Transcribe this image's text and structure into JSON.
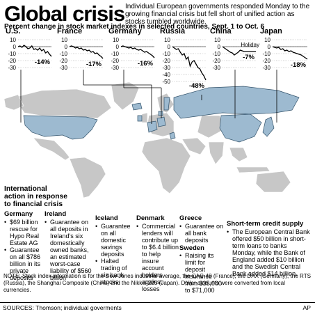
{
  "title": "Global crisis",
  "subtitle": "Individual European governments responded Monday to the growing financial crisis but fell short of unified action as stocks tumbled worldwide.",
  "chart_heading": "Percent change in stock market indexes in selected countries, Sept. 1 to Oct. 6",
  "colors": {
    "accent": "#9dbad0",
    "ocean": "#ffffff",
    "land": "#bfbfbf",
    "line": "#000000"
  },
  "chart_data": [
    {
      "type": "line",
      "title": "U.S.",
      "ylim": [
        -30,
        10
      ],
      "yticks": [
        "10",
        "0",
        "-10",
        "-20",
        "-30"
      ],
      "values": [
        0,
        1,
        -1,
        2,
        0,
        -3,
        -2,
        1,
        -4,
        -3,
        -5,
        -2,
        -6,
        -4,
        -9,
        -7,
        -11,
        -14
      ],
      "label": "-14%"
    },
    {
      "type": "line",
      "title": "France",
      "ylim": [
        -30,
        10
      ],
      "yticks": [
        "10",
        "0",
        "-10",
        "-20",
        "-30"
      ],
      "values": [
        0,
        1,
        0,
        -2,
        -1,
        -3,
        -2,
        -5,
        -4,
        -6,
        -5,
        -8,
        -7,
        -10,
        -9,
        -12,
        -14,
        -17
      ],
      "label": "-17%"
    },
    {
      "type": "line",
      "title": "Germany",
      "ylim": [
        -30,
        10
      ],
      "yticks": [
        "10",
        "0",
        "-10",
        "-20",
        "-30"
      ],
      "values": [
        0,
        1,
        0,
        -1,
        -2,
        -1,
        -3,
        -2,
        -4,
        -5,
        -4,
        -6,
        -8,
        -7,
        -9,
        -11,
        -13,
        -16
      ],
      "label": "-16%"
    },
    {
      "type": "line",
      "title": "Russia",
      "ylim": [
        -50,
        10
      ],
      "yticks": [
        "10",
        "0",
        "-10",
        "-20",
        "-30",
        "-40",
        "-50"
      ],
      "values": [
        0,
        -2,
        -4,
        -3,
        -8,
        -12,
        -10,
        -18,
        -15,
        -28,
        -22,
        -20,
        -25,
        -30,
        -32,
        -38,
        -42,
        -48
      ],
      "label": "-48%"
    },
    {
      "type": "line",
      "title": "China",
      "ylim": [
        -30,
        10
      ],
      "yticks": [
        "10",
        "0",
        "-10",
        "-20",
        "-30"
      ],
      "values": [
        0,
        -2,
        -4,
        -6,
        -8,
        -9,
        -12,
        -10,
        -8,
        -5,
        -6,
        -7,
        -7,
        -7,
        -7,
        -7,
        -7,
        -7
      ],
      "label": "-7%",
      "annotation": "Holiday"
    },
    {
      "type": "line",
      "title": "Japan",
      "ylim": [
        -30,
        10
      ],
      "yticks": [
        "10",
        "0",
        "-10",
        "-20",
        "-30"
      ],
      "values": [
        0,
        -1,
        -2,
        -1,
        -4,
        -3,
        -6,
        -5,
        -7,
        -6,
        -8,
        -9,
        -10,
        -11,
        -12,
        -14,
        -16,
        -18
      ],
      "label": "-18%"
    }
  ],
  "intl_heading": "International action in response to financial crisis",
  "columns": [
    {
      "head": "Germany",
      "items": [
        "$69 billion rescue for Hypo Real Estate AG",
        "Guarantee on all $786 billion in its private deposits"
      ]
    },
    {
      "head": "Ireland",
      "items": [
        "Guarantee on all deposits in Ireland's six domestically owned banks, an estimated worst-case liability of $560 billion"
      ]
    },
    {
      "head": "Iceland",
      "items": [
        "Guarantee on all domestic savings deposits",
        "Halted trading of six bank stocks"
      ]
    },
    {
      "head": "Denmark",
      "items": [
        "Commercial lenders will contribute up to $6.4 billion to help insure account holders against losses"
      ]
    },
    {
      "head": "Greece",
      "items": [
        "Guarantee on all bank deposits"
      ]
    },
    {
      "head": "Sweden",
      "items": [
        "Raising its limit for deposit insurance from $35,000 to $71,000"
      ]
    },
    {
      "head": "Short-term credit supply",
      "items": [
        "The European Central Bank offered $50 billion in short-term loans to banks Monday, while the Bank of England added $10 billion and the Swedish Central Bank added $14 billion."
      ]
    }
  ],
  "note": "NOTE: Stock index information is for the Dow Jones industrial average, the CAC-40 (France), the DAX (Germany), the RTS (Russia), the Shanghai Composite (China) and the Nikkei 225 (Japan). Dollar amounts were converted from local currencies.",
  "sources": "SOURCES: Thomson; individual goverments",
  "credit": "AP"
}
